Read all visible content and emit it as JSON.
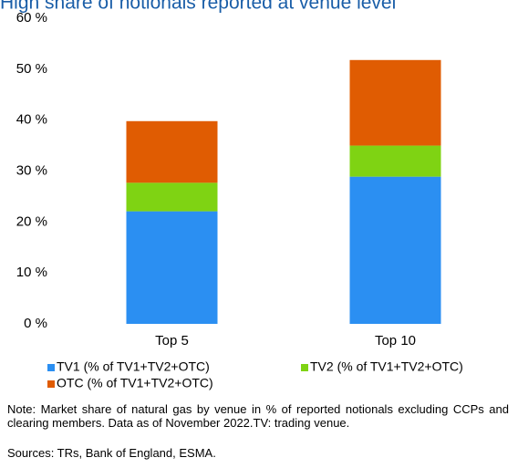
{
  "chart_data": {
    "type": "stacked_bar",
    "title": "High share of notionals reported at venue level",
    "categories": [
      "Top 5",
      "Top 10"
    ],
    "series": [
      {
        "name": "TV1 (%  of TV1+TV2+OTC)",
        "color": "#2b8ff2",
        "values": [
          22.1,
          28.9
        ]
      },
      {
        "name": "TV2 (%  of TV1+TV2+OTC)",
        "color": "#7fd313",
        "values": [
          5.6,
          6.1
        ]
      },
      {
        "name": "OTC (%  of TV1+TV2+OTC)",
        "color": "#e05c02",
        "values": [
          12.1,
          16.8
        ]
      }
    ],
    "ylim": [
      0,
      60
    ],
    "yticks": [
      {
        "value": 0,
        "label": "0 %"
      },
      {
        "value": 10,
        "label": "10 %"
      },
      {
        "value": 20,
        "label": "20 %"
      },
      {
        "value": 30,
        "label": "30 %"
      },
      {
        "value": 40,
        "label": "40 %"
      },
      {
        "value": 50,
        "label": "50 %"
      },
      {
        "value": 60,
        "label": "60 %"
      }
    ],
    "grid": false,
    "note": "Note: Market share of natural gas by venue in % of reported notionals excluding CCPs and clearing members. Data as of November 2022.TV: trading venue.",
    "sources": "Sources: TRs, Bank of England, ESMA."
  }
}
